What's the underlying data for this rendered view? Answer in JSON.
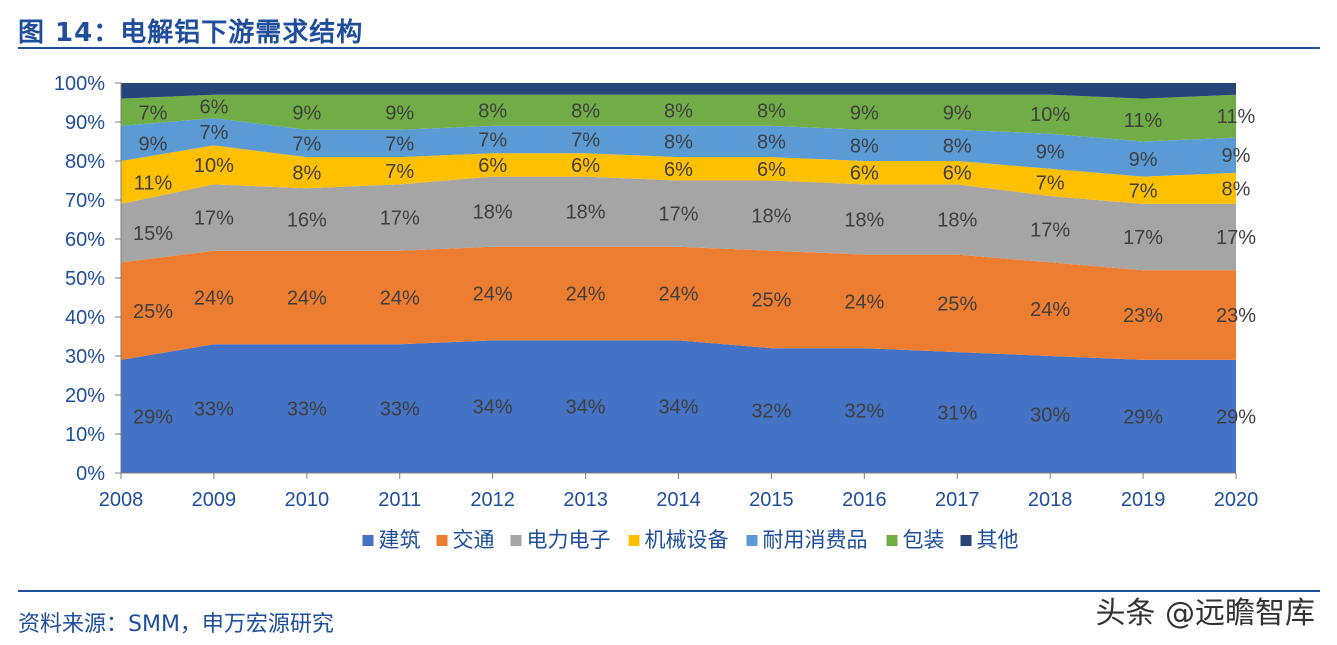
{
  "header": {
    "title": "图 14：电解铝下游需求结构"
  },
  "footer": {
    "source": "资料来源：SMM，申万宏源研究",
    "watermark": "头条 @远瞻智库"
  },
  "colors": {
    "建筑": "#4472c4",
    "交通": "#ed7d31",
    "电力电子": "#a5a5a5",
    "机械设备": "#ffc000",
    "耐用消费品": "#5b9bd5",
    "包装": "#70ad47",
    "其他": "#264478"
  },
  "chart_data": {
    "type": "area",
    "stacked": true,
    "title": "",
    "xlabel": "",
    "ylabel": "",
    "ylim": [
      0,
      100
    ],
    "y_ticks": [
      "0%",
      "10%",
      "20%",
      "30%",
      "40%",
      "50%",
      "60%",
      "70%",
      "80%",
      "90%",
      "100%"
    ],
    "categories": [
      "2008",
      "2009",
      "2010",
      "2011",
      "2012",
      "2013",
      "2014",
      "2015",
      "2016",
      "2017",
      "2018",
      "2019",
      "2020"
    ],
    "legend_position": "bottom",
    "series": [
      {
        "name": "建筑",
        "values": [
          29,
          33,
          33,
          33,
          34,
          34,
          34,
          32,
          32,
          31,
          30,
          29,
          29
        ],
        "labels": [
          "29%",
          "33%",
          "33%",
          "33%",
          "34%",
          "34%",
          "34%",
          "32%",
          "32%",
          "31%",
          "30%",
          "29%",
          "29%"
        ]
      },
      {
        "name": "交通",
        "values": [
          25,
          24,
          24,
          24,
          24,
          24,
          24,
          25,
          24,
          25,
          24,
          23,
          23
        ],
        "labels": [
          "25%",
          "24%",
          "24%",
          "24%",
          "24%",
          "24%",
          "24%",
          "25%",
          "24%",
          "25%",
          "24%",
          "23%",
          "23%"
        ]
      },
      {
        "name": "电力电子",
        "values": [
          15,
          17,
          16,
          17,
          18,
          18,
          17,
          18,
          18,
          18,
          17,
          17,
          17
        ],
        "labels": [
          "15%",
          "17%",
          "16%",
          "17%",
          "18%",
          "18%",
          "17%",
          "18%",
          "18%",
          "18%",
          "17%",
          "17%",
          "17%"
        ]
      },
      {
        "name": "机械设备",
        "values": [
          11,
          10,
          8,
          7,
          6,
          6,
          6,
          6,
          6,
          6,
          7,
          7,
          8
        ],
        "labels": [
          "11%",
          "10%",
          "8%",
          "7%",
          "6%",
          "6%",
          "6%",
          "6%",
          "6%",
          "6%",
          "7%",
          "7%",
          "8%"
        ]
      },
      {
        "name": "耐用消费品",
        "values": [
          9,
          7,
          7,
          7,
          7,
          7,
          8,
          8,
          8,
          8,
          9,
          9,
          9
        ],
        "labels": [
          "9%",
          "7%",
          "7%",
          "7%",
          "7%",
          "7%",
          "8%",
          "8%",
          "8%",
          "8%",
          "9%",
          "9%",
          "9%"
        ]
      },
      {
        "name": "包装",
        "values": [
          7,
          6,
          9,
          9,
          8,
          8,
          8,
          8,
          9,
          9,
          10,
          11,
          11
        ],
        "labels": [
          "7%",
          "6%",
          "9%",
          "9%",
          "8%",
          "8%",
          "8%",
          "8%",
          "9%",
          "9%",
          "10%",
          "11%",
          "11%"
        ]
      },
      {
        "name": "其他",
        "values": [
          4,
          3,
          3,
          3,
          3,
          3,
          3,
          3,
          3,
          3,
          3,
          4,
          3
        ],
        "labels": []
      }
    ]
  }
}
